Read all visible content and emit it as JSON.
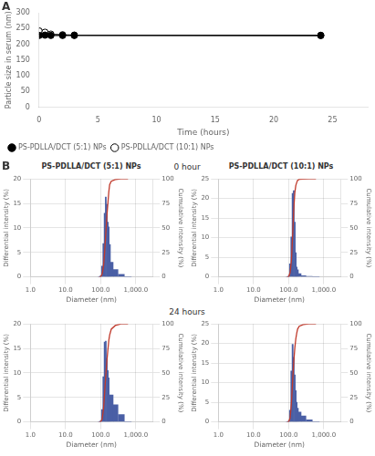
{
  "chart_data": [
    {
      "type": "line",
      "annotations": [
        "A"
      ],
      "xlabel": "Time (hours)",
      "ylabel": "Particle size in serum (nm)",
      "x": [
        0,
        0.5,
        1,
        2,
        3,
        24
      ],
      "series": [
        {
          "name": "PS-PDLLA/DCT (5:1) NPs",
          "color": "#000000",
          "marker": "circle",
          "line_style": "solid",
          "values": [
            228,
            229,
            228,
            228,
            228,
            228
          ],
          "yerr": [
            4,
            4,
            3,
            3,
            3,
            4
          ]
        },
        {
          "name": "PS-PDLLA/DCT (10:1) NPs",
          "color": "#000000",
          "marker": "circle-open",
          "line_style": "solid",
          "values": [
            242,
            238,
            232,
            230,
            229,
            228
          ],
          "yerr": [
            8,
            7,
            5,
            4,
            4,
            5
          ]
        }
      ],
      "xlim": [
        0,
        28
      ],
      "xticks": [
        0,
        5,
        10,
        15,
        20,
        25
      ],
      "ylim": [
        0,
        300
      ],
      "yticks": [
        0,
        50,
        100,
        150,
        200,
        250,
        300
      ],
      "grid": false,
      "legend": "lower left"
    },
    {
      "type": "bar",
      "title": "PS-PDLLA/DCT (5:1) NPs",
      "annotations": [
        "B",
        "0 hour"
      ],
      "xlabel": "Diameter (nm)",
      "ylabel": "Differential intensity (%)",
      "y2label": "Cumulative intensity (%)",
      "x": [
        90,
        100,
        110,
        120,
        130,
        140,
        150,
        160,
        170,
        180,
        200,
        260,
        380,
        600
      ],
      "series": [
        {
          "type": "bar",
          "color": "#4a5fa5",
          "values": [
            0.0,
            0.2,
            2.2,
            6.8,
            13.0,
            16.3,
            14.8,
            11.2,
            10.2,
            6.6,
            3.0,
            1.5,
            0.5,
            0.0
          ]
        },
        {
          "type": "line",
          "color": "#c0392b",
          "axis": "y2",
          "values": [
            0,
            0.23,
            2.78,
            10.66,
            25.72,
            44.61,
            61.76,
            74.74,
            86.56,
            94.21,
            97.68,
            99.42,
            100,
            100
          ]
        }
      ],
      "log": "x",
      "xlim": [
        1,
        3000
      ],
      "xticks": [
        {
          "value": 1,
          "label": "1.0"
        },
        {
          "value": 10,
          "label": "10.0"
        },
        {
          "value": 100,
          "label": "100.0"
        },
        {
          "value": 1000,
          "label": "1,000.0"
        }
      ],
      "ylim": [
        0,
        20
      ],
      "yticks": [
        0,
        5,
        10,
        15,
        20
      ],
      "y2lim": [
        0,
        100
      ],
      "y2ticks": [
        0,
        25,
        50,
        75,
        100
      ],
      "grid": true
    },
    {
      "type": "bar",
      "title": "PS-PDLLA/DCT (10:1) NPs",
      "xlabel": "Diameter (nm)",
      "ylabel": "Differential intensity (%)",
      "y2label": "Cumulative intensity (%)",
      "x": [
        90,
        100,
        110,
        120,
        130,
        140,
        150,
        160,
        170,
        180,
        200,
        260,
        380,
        600
      ],
      "series": [
        {
          "type": "bar",
          "color": "#4a5fa5",
          "values": [
            0.0,
            0.2,
            3.3,
            10.2,
            21.3,
            22.0,
            14.0,
            6.2,
            2.5,
            1.8,
            0.8,
            0.3,
            0.1,
            0.0
          ]
        },
        {
          "type": "line",
          "color": "#c0392b",
          "axis": "y2",
          "values": [
            0,
            0.24,
            4.23,
            16.57,
            42.32,
            68.92,
            85.85,
            93.35,
            96.37,
            98.55,
            99.52,
            99.88,
            100,
            100
          ]
        }
      ],
      "log": "x",
      "xlim": [
        1,
        3000
      ],
      "xticks": [
        {
          "value": 1,
          "label": "1.0"
        },
        {
          "value": 10,
          "label": "10.0"
        },
        {
          "value": 100,
          "label": "100.0"
        },
        {
          "value": 1000,
          "label": "1,000.0"
        }
      ],
      "ylim": [
        0,
        25
      ],
      "yticks": [
        0,
        5,
        10,
        15,
        20,
        25
      ],
      "y2lim": [
        0,
        100
      ],
      "y2ticks": [
        0,
        25,
        50,
        75,
        100
      ],
      "grid": true
    },
    {
      "type": "bar",
      "annotations": [
        "24 hours"
      ],
      "xlabel": "Diameter (nm)",
      "ylabel": "Differential intensity (%)",
      "y2label": "Cumulative intensity (%)",
      "x": [
        90,
        100,
        110,
        120,
        130,
        140,
        150,
        160,
        170,
        180,
        200,
        260,
        380,
        600
      ],
      "series": [
        {
          "type": "bar",
          "color": "#4a5fa5",
          "values": [
            0.0,
            0.2,
            2.5,
            9.2,
            16.3,
            16.5,
            13.0,
            10.5,
            9.0,
            5.5,
            5.5,
            3.5,
            1.5,
            0.0
          ]
        },
        {
          "type": "line",
          "color": "#c0392b",
          "axis": "y2",
          "values": [
            0,
            0.21,
            2.9,
            12.77,
            30.26,
            47.96,
            61.91,
            73.18,
            82.83,
            88.73,
            94.64,
            98.39,
            100,
            100
          ]
        }
      ],
      "log": "x",
      "xlim": [
        1,
        3000
      ],
      "xticks": [
        {
          "value": 1,
          "label": "1.0"
        },
        {
          "value": 10,
          "label": "10.0"
        },
        {
          "value": 100,
          "label": "100.0"
        },
        {
          "value": 1000,
          "label": "1,000.0"
        }
      ],
      "ylim": [
        0,
        20
      ],
      "yticks": [
        0,
        5,
        10,
        15,
        20
      ],
      "y2lim": [
        0,
        100
      ],
      "y2ticks": [
        0,
        25,
        50,
        75,
        100
      ],
      "grid": true
    },
    {
      "type": "bar",
      "xlabel": "Diameter (nm)",
      "ylabel": "Differential intensity (%)",
      "y2label": "Cumulative intensity (%)",
      "x": [
        90,
        100,
        110,
        120,
        130,
        140,
        150,
        160,
        170,
        180,
        200,
        260,
        380,
        600
      ],
      "series": [
        {
          "type": "bar",
          "color": "#4a5fa5",
          "values": [
            0.0,
            0.2,
            3.0,
            13.0,
            19.8,
            16.5,
            12.0,
            8.0,
            5.0,
            3.5,
            2.5,
            1.5,
            0.5,
            0.0
          ]
        },
        {
          "type": "line",
          "color": "#c0392b",
          "axis": "y2",
          "values": [
            0,
            0.23,
            3.74,
            18.95,
            42.11,
            61.4,
            75.44,
            84.8,
            90.64,
            94.74,
            97.66,
            99.42,
            100,
            100
          ]
        }
      ],
      "log": "x",
      "xlim": [
        1,
        3000
      ],
      "xticks": [
        {
          "value": 1,
          "label": "1.0"
        },
        {
          "value": 10,
          "label": "10.0"
        },
        {
          "value": 100,
          "label": "100.0"
        },
        {
          "value": 1000,
          "label": "1,000.0"
        }
      ],
      "ylim": [
        0,
        25
      ],
      "yticks": [
        0,
        5,
        10,
        15,
        20,
        25
      ],
      "y2lim": [
        0,
        100
      ],
      "y2ticks": [
        0,
        25,
        50,
        75,
        100
      ],
      "grid": true
    }
  ]
}
